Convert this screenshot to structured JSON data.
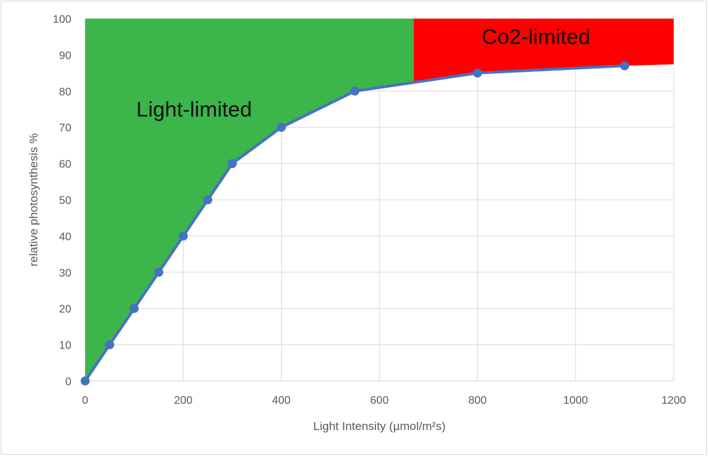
{
  "chart_data": {
    "type": "line",
    "title": "",
    "xlabel": "Light Intensity (µmol/m²s)",
    "ylabel": "relative photosynthesis %",
    "xlim": [
      0,
      1200
    ],
    "ylim": [
      0,
      100
    ],
    "x_ticks": [
      0,
      200,
      400,
      600,
      800,
      1000,
      1200
    ],
    "y_ticks": [
      0,
      10,
      20,
      30,
      40,
      50,
      60,
      70,
      80,
      90,
      100
    ],
    "grid": true,
    "legend": "none",
    "series": [
      {
        "color": "#4472c4",
        "marker": "circle",
        "x": [
          0,
          50,
          100,
          150,
          200,
          250,
          300,
          400,
          550,
          800,
          1100
        ],
        "y": [
          0,
          10,
          20,
          30,
          40,
          50,
          60,
          70,
          80,
          85,
          87
        ]
      }
    ],
    "regions": [
      {
        "label": "Light-limited",
        "color": "#3cb54a",
        "label_x": 340,
        "label_y": 73,
        "polygon": [
          [
            0,
            0
          ],
          [
            0,
            100
          ],
          [
            670,
            100
          ],
          [
            670,
            82.4
          ],
          [
            550,
            80
          ],
          [
            400,
            70
          ],
          [
            300,
            60
          ],
          [
            250,
            50
          ],
          [
            200,
            40
          ],
          [
            150,
            30
          ],
          [
            100,
            20
          ],
          [
            50,
            10
          ]
        ]
      },
      {
        "label": "Co2-limited",
        "color": "#ff0000",
        "label_x": 1030,
        "label_y": 93,
        "polygon": [
          [
            670,
            100
          ],
          [
            1200,
            100
          ],
          [
            1200,
            87.4
          ],
          [
            1100,
            87
          ],
          [
            800,
            85
          ],
          [
            670,
            82.4
          ]
        ]
      }
    ]
  }
}
